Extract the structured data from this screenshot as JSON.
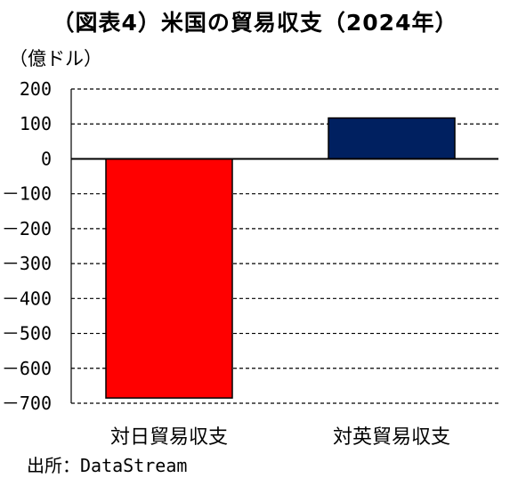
{
  "chart_data": {
    "type": "bar",
    "title": "（図表4）米国の貿易収支（2024年）",
    "unit_label": "（億ドル）",
    "categories": [
      "対日貿易収支",
      "対英貿易収支"
    ],
    "values": [
      -685,
      117
    ],
    "colors": [
      "#ff0000",
      "#002060"
    ],
    "ylim": [
      -700,
      200
    ],
    "yticks": [
      200,
      100,
      0,
      -100,
      -200,
      -300,
      -400,
      -500,
      -600,
      -700
    ],
    "grid": true,
    "source": "出所：DataStream"
  }
}
